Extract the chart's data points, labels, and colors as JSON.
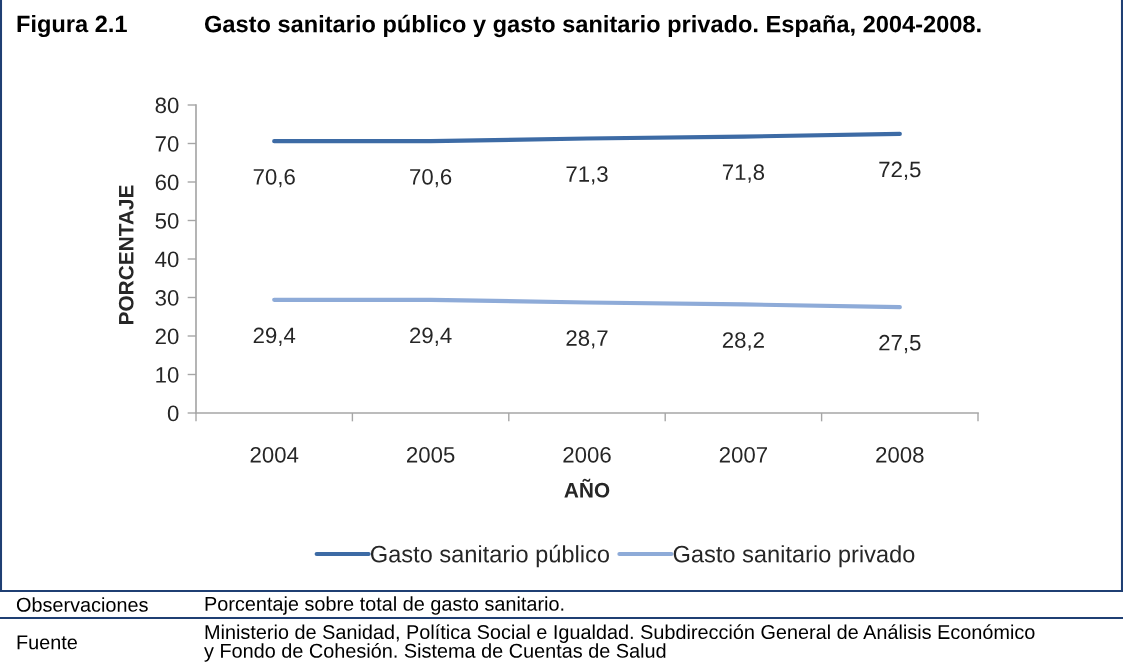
{
  "chart_data": {
    "type": "line",
    "title": "Gasto sanitario público y gasto sanitario privado. España, 2004-2008.",
    "xlabel": "AÑO",
    "ylabel": "PORCENTAJE",
    "annotations": [
      "Figura 2.1",
      "Observaciones",
      "Porcentaje sobre total de gasto sanitario.",
      "Fuente",
      "Ministerio de Sanidad, Política Social e Igualdad. Subdirección General de Análisis Económico\ny Fondo de Cohesión. Sistema de Cuentas de Salud"
    ],
    "categories": [
      "2004",
      "2005",
      "2006",
      "2007",
      "2008"
    ],
    "series": [
      {
        "name": "Gasto sanitario público",
        "color": "#3d6ba5",
        "values": [
          70.6,
          70.6,
          71.3,
          71.8,
          72.5
        ],
        "value_labels": [
          "70,6",
          "70,6",
          "71,3",
          "71,8",
          "72,5"
        ]
      },
      {
        "name": "Gasto sanitario privado",
        "color": "#8eabd8",
        "values": [
          29.4,
          29.4,
          28.7,
          28.2,
          27.5
        ],
        "value_labels": [
          "29,4",
          "29,4",
          "28,7",
          "28,2",
          "27,5"
        ]
      }
    ],
    "ylim": [
      0,
      80
    ],
    "yticks": [
      0,
      10,
      20,
      30,
      40,
      50,
      60,
      70,
      80
    ],
    "legend": "bottom",
    "marker": "none",
    "line_style": "solid"
  }
}
